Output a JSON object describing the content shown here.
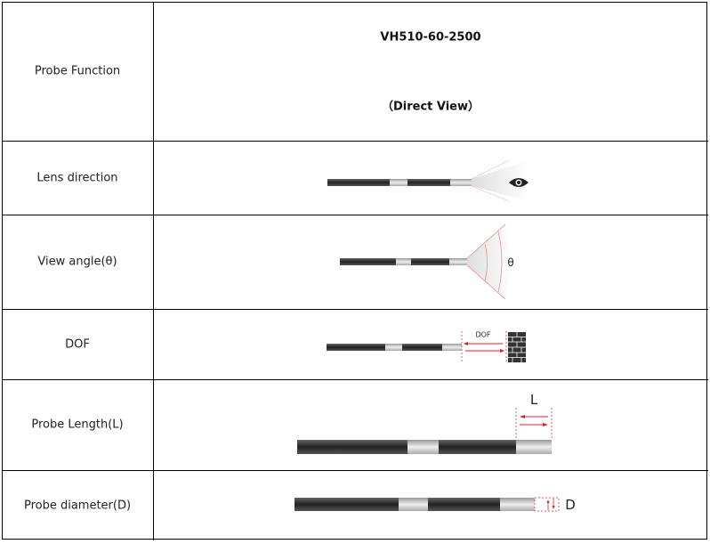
{
  "header": {
    "model": "VH510-60-2500",
    "view_type": "（Direct View）"
  },
  "rows": [
    {
      "label": "Probe Function"
    },
    {
      "label": "Lens direction",
      "icon": "eye-icon"
    },
    {
      "label": "View angle(θ)",
      "symbol": "θ"
    },
    {
      "label": "DOF",
      "symbol": "DOF"
    },
    {
      "label": "Probe Length(L)",
      "symbol": "L"
    },
    {
      "label": "Probe diameter(D)",
      "symbol": "D"
    }
  ],
  "colors": {
    "accent": "#e02020",
    "probe_dark": "#333333",
    "probe_light": "#c8c8c8"
  }
}
